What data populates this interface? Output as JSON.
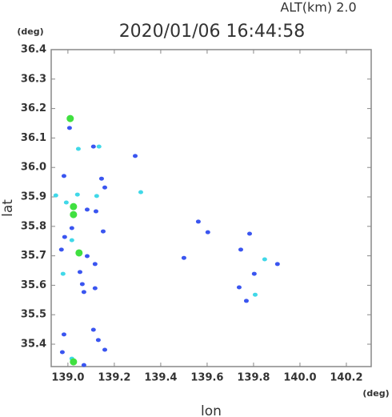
{
  "chart_data": {
    "type": "scatter",
    "title": "2020/01/06 16:44:58",
    "altitude_label": "ALT(km)  2.0",
    "x_label": "lon",
    "y_label": "lat",
    "x_unit": "(deg)",
    "y_unit": "(deg)",
    "xlim": [
      138.928,
      140.307
    ],
    "ylim": [
      35.324,
      36.4
    ],
    "xticks": [
      {
        "value": 139,
        "label": "139.0"
      },
      139.2,
      139.4,
      139.6,
      139.8,
      {
        "value": 140,
        "label": "140.0"
      },
      140.2
    ],
    "yticks": [
      35.4,
      35.5,
      35.6,
      35.7,
      35.8,
      35.9,
      {
        "value": 36,
        "label": "36.0"
      },
      36.1,
      36.2,
      36.3,
      36.4
    ],
    "series": [
      {
        "color": "#3a55f0",
        "x": [
          139.007,
          139.11,
          138.983,
          139.145,
          139.159,
          139.083,
          139.121,
          139.017,
          139.152,
          138.986,
          139.083,
          139.117,
          138.972,
          139.052,
          139.062,
          139.117,
          139.069,
          139.603,
          139.562,
          139.5,
          139.29,
          139.745,
          139.783,
          139.903,
          139.803,
          139.769,
          139.738,
          138.983,
          139.11,
          139.131,
          139.159,
          138.976,
          139.069
        ],
        "y": [
          36.134,
          36.071,
          35.971,
          35.962,
          35.932,
          35.857,
          35.851,
          35.794,
          35.783,
          35.764,
          35.699,
          35.672,
          35.721,
          35.645,
          35.604,
          35.59,
          35.577,
          35.78,
          35.816,
          35.693,
          36.039,
          35.721,
          35.775,
          35.672,
          35.639,
          35.547,
          35.593,
          35.433,
          35.449,
          35.414,
          35.381,
          35.373,
          35.329
        ]
      },
      {
        "color": "#40d8e8",
        "x": [
          139.045,
          139.134,
          138.948,
          139.041,
          139.124,
          138.993,
          139.314,
          139.017,
          138.979,
          139.848,
          139.807,
          139.017
        ],
        "y": [
          36.063,
          36.071,
          35.905,
          35.908,
          35.903,
          35.881,
          35.916,
          35.753,
          35.639,
          35.688,
          35.568,
          35.351
        ]
      },
      {
        "color": "#40e040",
        "x": [
          139.01,
          139.024,
          139.024,
          139.048,
          139.024
        ],
        "y": [
          36.166,
          35.867,
          35.84,
          35.71,
          35.34
        ]
      }
    ]
  }
}
